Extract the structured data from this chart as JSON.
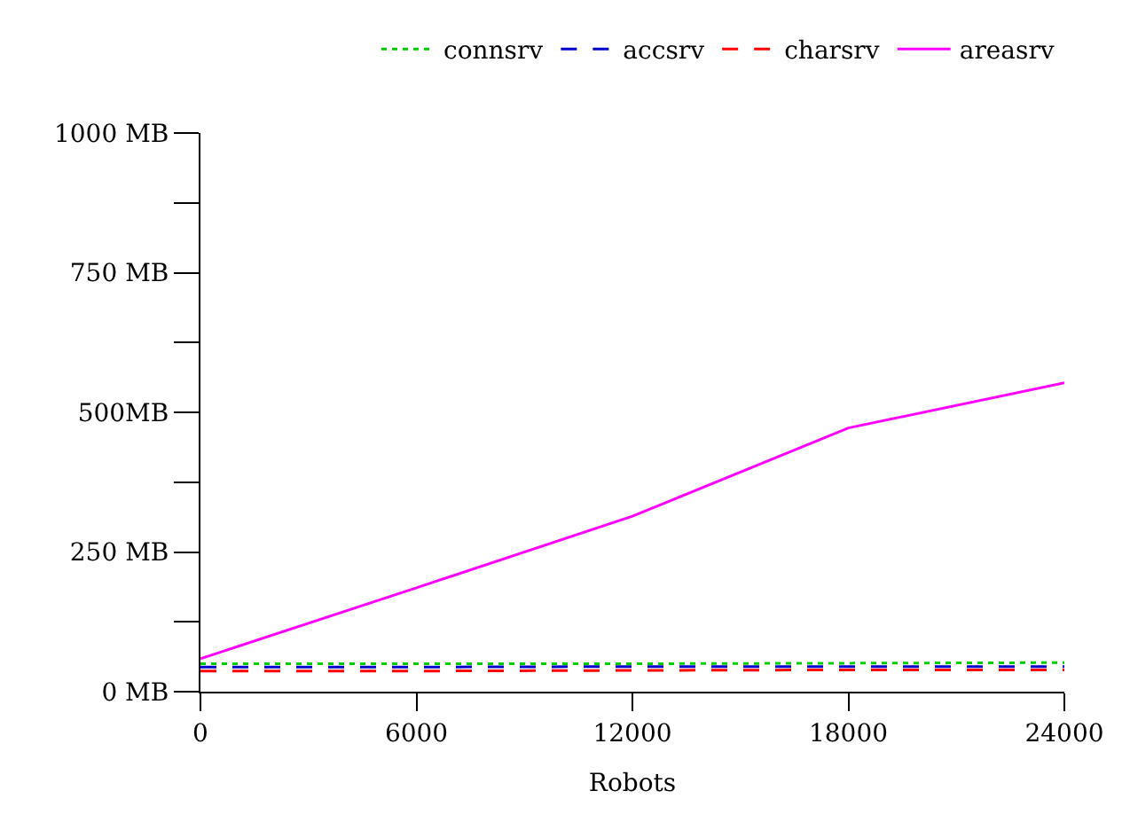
{
  "chart_data": {
    "type": "line",
    "xlabel": "Robots",
    "x": [
      0,
      6000,
      12000,
      18000,
      24000
    ],
    "series": [
      {
        "name": "connsrv",
        "color": "#00cc00",
        "line_style": "dotted",
        "values": [
          50,
          50,
          50,
          51,
          52
        ]
      },
      {
        "name": "accsrv",
        "color": "#0000cc",
        "line_style": "dashed",
        "values": [
          44,
          44,
          45,
          45,
          45
        ]
      },
      {
        "name": "charsrv",
        "color": "#ff0000",
        "line_style": "dashed",
        "values": [
          37,
          37,
          38,
          39,
          39
        ]
      },
      {
        "name": "areasrv",
        "color": "#ff00ff",
        "line_style": "solid",
        "values": [
          59,
          186,
          314,
          472,
          553
        ]
      }
    ],
    "xlim": [
      0,
      24000
    ],
    "xticks": [
      0,
      6000,
      12000,
      18000,
      24000
    ],
    "ylim": [
      0,
      1000
    ],
    "yticks": [
      {
        "value": 0,
        "label": "0 MB"
      },
      {
        "value": 125,
        "label": null
      },
      {
        "value": 250,
        "label": "250 MB"
      },
      {
        "value": 375,
        "label": null
      },
      {
        "value": 500,
        "label": "500MB"
      },
      {
        "value": 625,
        "label": null
      },
      {
        "value": 750,
        "label": "750 MB"
      },
      {
        "value": 875,
        "label": null
      },
      {
        "value": 1000,
        "label": "1000 MB"
      }
    ],
    "grid": false,
    "legend": "top",
    "marker": "none"
  }
}
